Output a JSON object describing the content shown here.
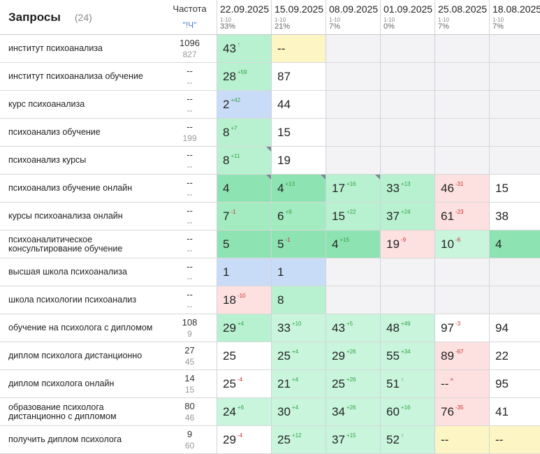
{
  "header": {
    "title": "Запросы",
    "count": "(24)",
    "freq_title": "Частота",
    "freq_sub": "\"!Ч\"",
    "dates": [
      {
        "date": "22.09.2025",
        "range": "1-10",
        "pct": "33%"
      },
      {
        "date": "15.09.2025",
        "range": "1-10",
        "pct": "21%"
      },
      {
        "date": "08.09.2025",
        "range": "1-10",
        "pct": "7%"
      },
      {
        "date": "01.09.2025",
        "range": "1-10",
        "pct": "0%"
      },
      {
        "date": "25.08.2025",
        "range": "1-10",
        "pct": "7%"
      },
      {
        "date": "18.08.2025",
        "range": "1-10",
        "pct": "7%"
      }
    ]
  },
  "rows": [
    {
      "query": "институт психоанализа",
      "freq1": "1096",
      "freq2": "827",
      "cells": [
        {
          "v": "43",
          "d": "↑",
          "dir": "up",
          "bg": "g2",
          "mark": false
        },
        {
          "v": "--",
          "d": "",
          "dir": "",
          "bg": "yellow",
          "mark": false
        },
        {
          "v": "",
          "d": "",
          "dir": "",
          "bg": "empty",
          "mark": false
        },
        {
          "v": "",
          "d": "",
          "dir": "",
          "bg": "empty",
          "mark": false
        },
        {
          "v": "",
          "d": "",
          "dir": "",
          "bg": "empty",
          "mark": false
        },
        {
          "v": "",
          "d": "",
          "dir": "",
          "bg": "empty",
          "mark": false
        }
      ]
    },
    {
      "query": "институт психоанализа обучение",
      "freq1": "--",
      "freq2": "--",
      "cells": [
        {
          "v": "28",
          "d": "+59",
          "dir": "up",
          "bg": "g2",
          "mark": false
        },
        {
          "v": "87",
          "d": "",
          "dir": "",
          "bg": "white",
          "mark": false
        },
        {
          "v": "",
          "d": "",
          "dir": "",
          "bg": "empty",
          "mark": false
        },
        {
          "v": "",
          "d": "",
          "dir": "",
          "bg": "empty",
          "mark": false
        },
        {
          "v": "",
          "d": "",
          "dir": "",
          "bg": "empty",
          "mark": false
        },
        {
          "v": "",
          "d": "",
          "dir": "",
          "bg": "empty",
          "mark": false
        }
      ]
    },
    {
      "query": "курс психоанализа",
      "freq1": "--",
      "freq2": "--",
      "cells": [
        {
          "v": "2",
          "d": "+42",
          "dir": "up",
          "bg": "blue",
          "mark": false
        },
        {
          "v": "44",
          "d": "",
          "dir": "",
          "bg": "white",
          "mark": false
        },
        {
          "v": "",
          "d": "",
          "dir": "",
          "bg": "empty",
          "mark": false
        },
        {
          "v": "",
          "d": "",
          "dir": "",
          "bg": "empty",
          "mark": false
        },
        {
          "v": "",
          "d": "",
          "dir": "",
          "bg": "empty",
          "mark": false
        },
        {
          "v": "",
          "d": "",
          "dir": "",
          "bg": "empty",
          "mark": false
        }
      ]
    },
    {
      "query": "психоанализ обучение",
      "freq1": "--",
      "freq2": "199",
      "cells": [
        {
          "v": "8",
          "d": "+7",
          "dir": "up",
          "bg": "g2",
          "mark": false
        },
        {
          "v": "15",
          "d": "",
          "dir": "",
          "bg": "white",
          "mark": false
        },
        {
          "v": "",
          "d": "",
          "dir": "",
          "bg": "empty",
          "mark": false
        },
        {
          "v": "",
          "d": "",
          "dir": "",
          "bg": "empty",
          "mark": false
        },
        {
          "v": "",
          "d": "",
          "dir": "",
          "bg": "empty",
          "mark": false
        },
        {
          "v": "",
          "d": "",
          "dir": "",
          "bg": "empty",
          "mark": false
        }
      ]
    },
    {
      "query": "психоанализ курсы",
      "freq1": "--",
      "freq2": "--",
      "cells": [
        {
          "v": "8",
          "d": "+11",
          "dir": "up",
          "bg": "g2",
          "mark": true
        },
        {
          "v": "19",
          "d": "",
          "dir": "",
          "bg": "white",
          "mark": false
        },
        {
          "v": "",
          "d": "",
          "dir": "",
          "bg": "empty",
          "mark": false
        },
        {
          "v": "",
          "d": "",
          "dir": "",
          "bg": "empty",
          "mark": false
        },
        {
          "v": "",
          "d": "",
          "dir": "",
          "bg": "empty",
          "mark": false
        },
        {
          "v": "",
          "d": "",
          "dir": "",
          "bg": "empty",
          "mark": false
        }
      ]
    },
    {
      "query": "психоанализ обучение онлайн",
      "freq1": "--",
      "freq2": "--",
      "cells": [
        {
          "v": "4",
          "d": "",
          "dir": "",
          "bg": "g4",
          "mark": true
        },
        {
          "v": "4",
          "d": "+13",
          "dir": "up",
          "bg": "g4",
          "mark": true
        },
        {
          "v": "17",
          "d": "+16",
          "dir": "up",
          "bg": "g2",
          "mark": true
        },
        {
          "v": "33",
          "d": "+13",
          "dir": "up",
          "bg": "g2",
          "mark": false
        },
        {
          "v": "46",
          "d": "-31",
          "dir": "down",
          "bg": "pink",
          "mark": false
        },
        {
          "v": "15",
          "d": "",
          "dir": "",
          "bg": "white",
          "mark": false
        }
      ]
    },
    {
      "query": "курсы психоанализа онлайн",
      "freq1": "--",
      "freq2": "--",
      "cells": [
        {
          "v": "7",
          "d": "-1",
          "dir": "down",
          "bg": "g3",
          "mark": false
        },
        {
          "v": "6",
          "d": "+9",
          "dir": "up",
          "bg": "g3",
          "mark": false
        },
        {
          "v": "15",
          "d": "+22",
          "dir": "up",
          "bg": "g2",
          "mark": false
        },
        {
          "v": "37",
          "d": "+24",
          "dir": "up",
          "bg": "g2",
          "mark": false
        },
        {
          "v": "61",
          "d": "-23",
          "dir": "down",
          "bg": "pink",
          "mark": false
        },
        {
          "v": "38",
          "d": "",
          "dir": "",
          "bg": "white",
          "mark": false
        }
      ]
    },
    {
      "query": "психоаналитическое консультирование обучение",
      "freq1": "--",
      "freq2": "--",
      "cells": [
        {
          "v": "5",
          "d": "",
          "dir": "",
          "bg": "g4",
          "mark": false
        },
        {
          "v": "5",
          "d": "-1",
          "dir": "down",
          "bg": "g4",
          "mark": false
        },
        {
          "v": "4",
          "d": "+15",
          "dir": "up",
          "bg": "g4",
          "mark": false
        },
        {
          "v": "19",
          "d": "-9",
          "dir": "down",
          "bg": "pink",
          "mark": false
        },
        {
          "v": "10",
          "d": "-6",
          "dir": "down",
          "bg": "g1",
          "mark": false
        },
        {
          "v": "4",
          "d": "",
          "dir": "",
          "bg": "g4",
          "mark": false
        }
      ]
    },
    {
      "query": "высшая школа психоанализа",
      "freq1": "--",
      "freq2": "--",
      "cells": [
        {
          "v": "1",
          "d": "",
          "dir": "",
          "bg": "blue",
          "mark": false
        },
        {
          "v": "1",
          "d": "",
          "dir": "",
          "bg": "blue",
          "mark": false
        },
        {
          "v": "",
          "d": "",
          "dir": "",
          "bg": "empty",
          "mark": false
        },
        {
          "v": "",
          "d": "",
          "dir": "",
          "bg": "empty",
          "mark": false
        },
        {
          "v": "",
          "d": "",
          "dir": "",
          "bg": "empty",
          "mark": false
        },
        {
          "v": "",
          "d": "",
          "dir": "",
          "bg": "empty",
          "mark": false
        }
      ]
    },
    {
      "query": "школа психологии психоанализ",
      "freq1": "--",
      "freq2": "--",
      "cells": [
        {
          "v": "18",
          "d": "-10",
          "dir": "down",
          "bg": "pink",
          "mark": false
        },
        {
          "v": "8",
          "d": "",
          "dir": "",
          "bg": "g2",
          "mark": false
        },
        {
          "v": "",
          "d": "",
          "dir": "",
          "bg": "empty",
          "mark": false
        },
        {
          "v": "",
          "d": "",
          "dir": "",
          "bg": "empty",
          "mark": false
        },
        {
          "v": "",
          "d": "",
          "dir": "",
          "bg": "empty",
          "mark": false
        },
        {
          "v": "",
          "d": "",
          "dir": "",
          "bg": "empty",
          "mark": false
        }
      ]
    },
    {
      "query": "обучение на психолога с дипломом",
      "freq1": "108",
      "freq2": "9",
      "cells": [
        {
          "v": "29",
          "d": "+4",
          "dir": "up",
          "bg": "g2",
          "mark": false
        },
        {
          "v": "33",
          "d": "+10",
          "dir": "up",
          "bg": "g1",
          "mark": false
        },
        {
          "v": "43",
          "d": "+5",
          "dir": "up",
          "bg": "g1",
          "mark": false
        },
        {
          "v": "48",
          "d": "+49",
          "dir": "up",
          "bg": "g1",
          "mark": false
        },
        {
          "v": "97",
          "d": "-3",
          "dir": "down",
          "bg": "white",
          "mark": false
        },
        {
          "v": "94",
          "d": "",
          "dir": "",
          "bg": "white",
          "mark": false
        }
      ]
    },
    {
      "query": "диплом психолога дистанционно",
      "freq1": "27",
      "freq2": "45",
      "cells": [
        {
          "v": "25",
          "d": "",
          "dir": "",
          "bg": "white",
          "mark": false
        },
        {
          "v": "25",
          "d": "+4",
          "dir": "up",
          "bg": "g1",
          "mark": false
        },
        {
          "v": "29",
          "d": "+26",
          "dir": "up",
          "bg": "g1",
          "mark": false
        },
        {
          "v": "55",
          "d": "+34",
          "dir": "up",
          "bg": "g1",
          "mark": false
        },
        {
          "v": "89",
          "d": "-67",
          "dir": "down",
          "bg": "pink",
          "mark": false
        },
        {
          "v": "22",
          "d": "",
          "dir": "",
          "bg": "white",
          "mark": false
        }
      ]
    },
    {
      "query": "диплом психолога онлайн",
      "freq1": "14",
      "freq2": "15",
      "cells": [
        {
          "v": "25",
          "d": "-4",
          "dir": "down",
          "bg": "white",
          "mark": false
        },
        {
          "v": "21",
          "d": "+4",
          "dir": "up",
          "bg": "g1",
          "mark": false
        },
        {
          "v": "25",
          "d": "+26",
          "dir": "up",
          "bg": "g1",
          "mark": false
        },
        {
          "v": "51",
          "d": "↑",
          "dir": "up",
          "bg": "g1",
          "mark": false
        },
        {
          "v": "--",
          "d": "×",
          "dir": "down",
          "bg": "pink",
          "mark": false
        },
        {
          "v": "95",
          "d": "",
          "dir": "",
          "bg": "white",
          "mark": false
        }
      ]
    },
    {
      "query": "образование психолога дистанционно с дипломом",
      "freq1": "80",
      "freq2": "46",
      "cells": [
        {
          "v": "24",
          "d": "+6",
          "dir": "up",
          "bg": "g1",
          "mark": false
        },
        {
          "v": "30",
          "d": "+4",
          "dir": "up",
          "bg": "g1",
          "mark": false
        },
        {
          "v": "34",
          "d": "+26",
          "dir": "up",
          "bg": "g1",
          "mark": false
        },
        {
          "v": "60",
          "d": "+16",
          "dir": "up",
          "bg": "g1",
          "mark": false
        },
        {
          "v": "76",
          "d": "-35",
          "dir": "down",
          "bg": "pink",
          "mark": false
        },
        {
          "v": "41",
          "d": "",
          "dir": "",
          "bg": "white",
          "mark": false
        }
      ]
    },
    {
      "query": "получить диплом психолога",
      "freq1": "9",
      "freq2": "60",
      "cells": [
        {
          "v": "29",
          "d": "-4",
          "dir": "down",
          "bg": "white",
          "mark": false
        },
        {
          "v": "25",
          "d": "+12",
          "dir": "up",
          "bg": "g1",
          "mark": false
        },
        {
          "v": "37",
          "d": "+15",
          "dir": "up",
          "bg": "g1",
          "mark": false
        },
        {
          "v": "52",
          "d": "↑",
          "dir": "up",
          "bg": "g1",
          "mark": false
        },
        {
          "v": "--",
          "d": "",
          "dir": "",
          "bg": "yellow",
          "mark": false
        },
        {
          "v": "--",
          "d": "",
          "dir": "",
          "bg": "yellow",
          "mark": false
        }
      ]
    }
  ]
}
